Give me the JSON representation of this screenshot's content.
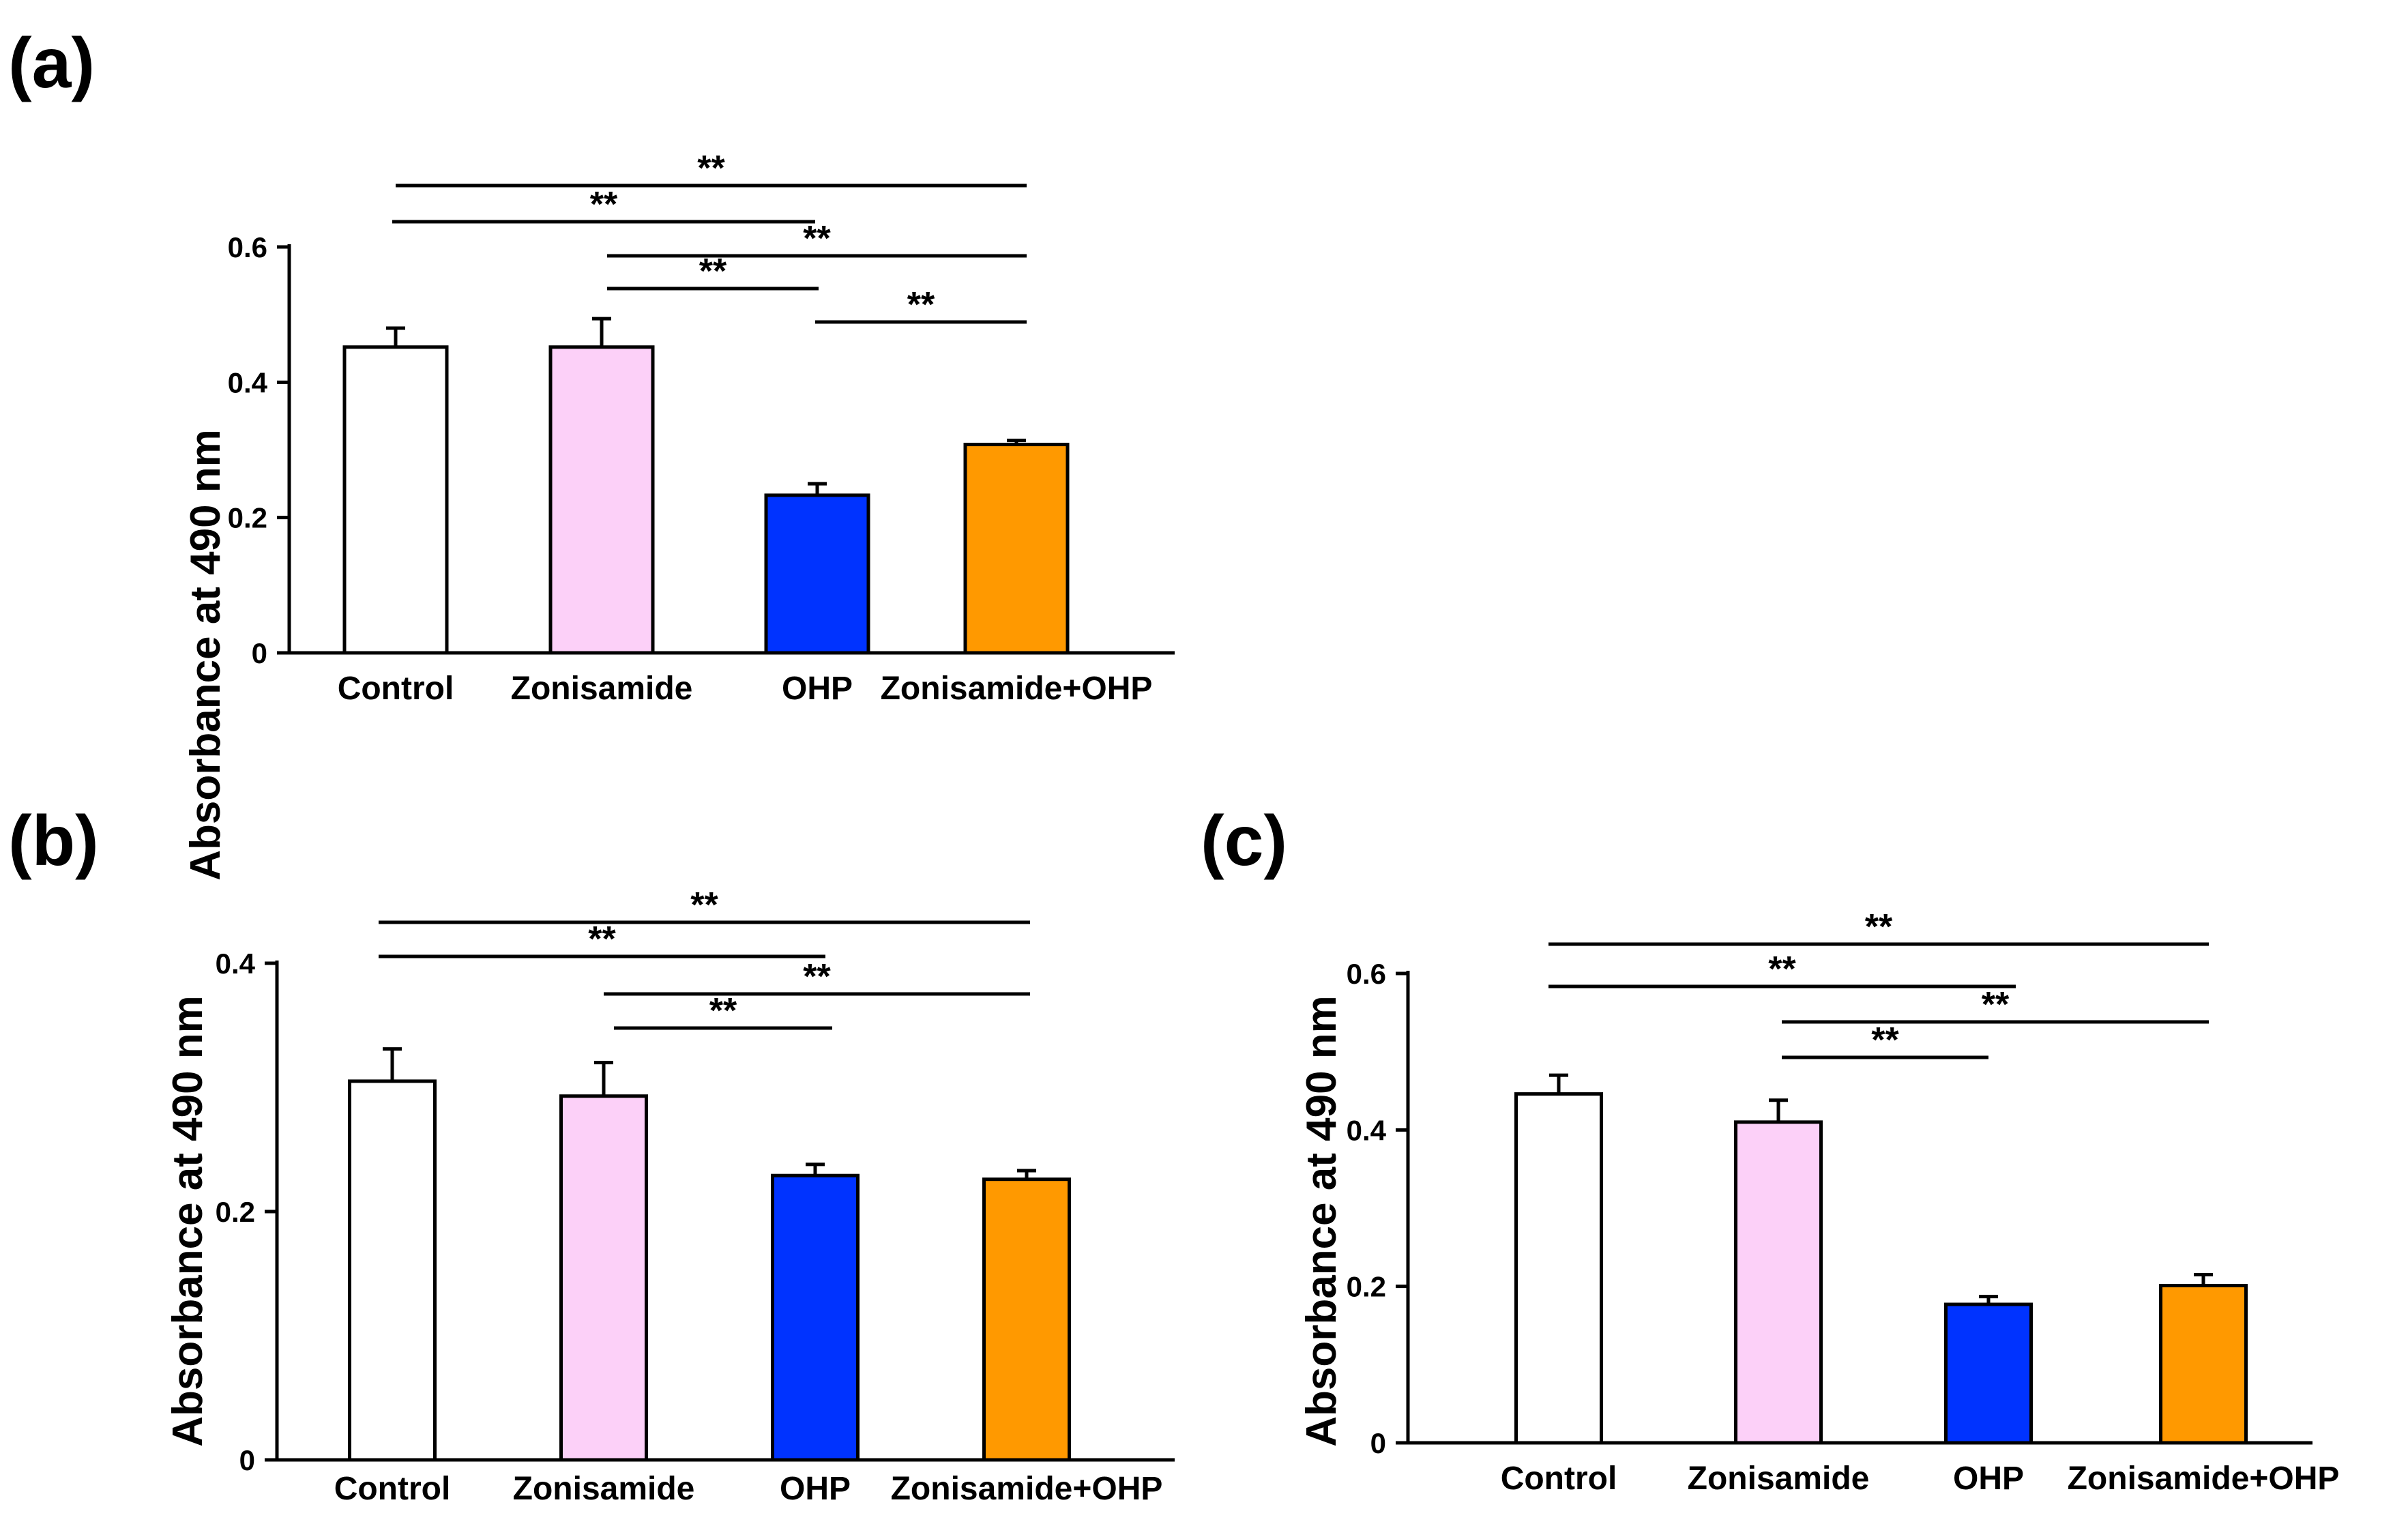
{
  "chart_data": [
    {
      "type": "bar",
      "panel_label": "(a)",
      "categories": [
        "Control",
        "Zonisamide",
        "OHP",
        "Zonisamide+OHP"
      ],
      "values": [
        0.452,
        0.452,
        0.233,
        0.308
      ],
      "errors": [
        0.028,
        0.042,
        0.017,
        0.006
      ],
      "bar_colors": [
        "#ffffff",
        "#fcd0f8",
        "#0033ff",
        "#ff9900"
      ],
      "xlabel": "",
      "ylabel": "Absorbance at 490 nm",
      "ylim": [
        0,
        0.6
      ],
      "yticks": [
        0,
        0.2,
        0.4,
        0.6
      ],
      "ytick_labels": [
        "0",
        "0.2",
        "0.4",
        "0.6"
      ],
      "significance": [
        {
          "from": 0,
          "to": 3,
          "label": "**"
        },
        {
          "from": 0,
          "to": 2,
          "label": "**"
        },
        {
          "from": 1,
          "to": 3,
          "label": "**"
        },
        {
          "from": 1,
          "to": 2,
          "label": "**"
        },
        {
          "from": 2,
          "to": 3,
          "label": "**"
        }
      ]
    },
    {
      "type": "bar",
      "panel_label": "(b)",
      "categories": [
        "Control",
        "Zonisamide",
        "OHP",
        "Zonisamide+OHP"
      ],
      "values": [
        0.305,
        0.293,
        0.229,
        0.226
      ],
      "errors": [
        0.026,
        0.027,
        0.009,
        0.007
      ],
      "bar_colors": [
        "#ffffff",
        "#fcd0f8",
        "#0033ff",
        "#ff9900"
      ],
      "xlabel": "",
      "ylabel": "Absorbance at 490 nm",
      "ylim": [
        0,
        0.4
      ],
      "yticks": [
        0,
        0.2,
        0.4
      ],
      "ytick_labels": [
        "0",
        "0.2",
        "0.4"
      ],
      "significance": [
        {
          "from": 0,
          "to": 3,
          "label": "**"
        },
        {
          "from": 0,
          "to": 2,
          "label": "**"
        },
        {
          "from": 1,
          "to": 3,
          "label": "**"
        },
        {
          "from": 1,
          "to": 2,
          "label": "**"
        }
      ]
    },
    {
      "type": "bar",
      "panel_label": "(c)",
      "categories": [
        "Control",
        "Zonisamide",
        "OHP",
        "Zonisamide+OHP"
      ],
      "values": [
        0.446,
        0.41,
        0.177,
        0.201
      ],
      "errors": [
        0.024,
        0.028,
        0.01,
        0.014
      ],
      "bar_colors": [
        "#ffffff",
        "#fcd0f8",
        "#0033ff",
        "#ff9900"
      ],
      "xlabel": "",
      "ylabel": "Absorbance at 490 nm",
      "ylim": [
        0,
        0.6
      ],
      "yticks": [
        0,
        0.2,
        0.4,
        0.6
      ],
      "ytick_labels": [
        "0",
        "0.2",
        "0.4",
        "0.6"
      ],
      "significance": [
        {
          "from": 0,
          "to": 3,
          "label": "**"
        },
        {
          "from": 0,
          "to": 2,
          "label": "**"
        },
        {
          "from": 1,
          "to": 3,
          "label": "**"
        },
        {
          "from": 1,
          "to": 2,
          "label": "**"
        }
      ]
    }
  ]
}
